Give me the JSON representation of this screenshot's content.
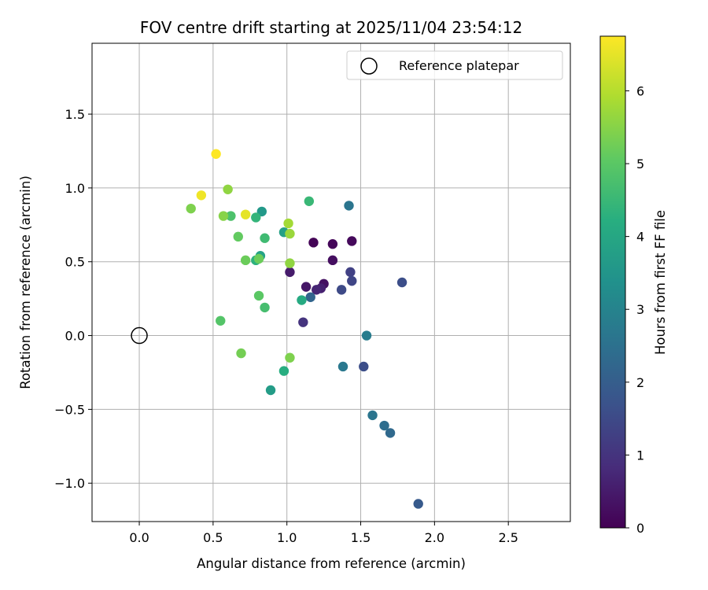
{
  "chart_data": {
    "type": "scatter",
    "title": "FOV centre drift starting at 2025/11/04 23:54:12",
    "xlabel": "Angular distance from reference (arcmin)",
    "ylabel": "Rotation from reference (arcmin)",
    "xlim": [
      -0.32,
      2.92
    ],
    "ylim": [
      -1.26,
      1.98
    ],
    "xticks": [
      0.0,
      0.5,
      1.0,
      1.5,
      2.0,
      2.5
    ],
    "xtick_labels": [
      "0.0",
      "0.5",
      "1.0",
      "1.5",
      "2.0",
      "2.5"
    ],
    "yticks": [
      -1.0,
      -0.5,
      0.0,
      0.5,
      1.0,
      1.5
    ],
    "ytick_labels": [
      "−1.0",
      "−0.5",
      "0.0",
      "0.5",
      "1.0",
      "1.5"
    ],
    "grid": true,
    "legend": {
      "position": "top-right",
      "entries": [
        "Reference platepar"
      ]
    },
    "reference_point": {
      "x": 0.0,
      "y": 0.0,
      "label": "Reference platepar"
    },
    "colorbar": {
      "label": "Hours from first FF file",
      "colormap": "viridis",
      "range": [
        0,
        6.75
      ],
      "ticks": [
        0,
        1,
        2,
        3,
        4,
        5,
        6
      ],
      "tick_labels": [
        "0",
        "1",
        "2",
        "3",
        "4",
        "5",
        "6"
      ]
    },
    "points": [
      {
        "x": 1.18,
        "y": 0.63,
        "h": 0.05
      },
      {
        "x": 1.31,
        "y": 0.62,
        "h": 0.1
      },
      {
        "x": 1.44,
        "y": 0.64,
        "h": 0.15
      },
      {
        "x": 1.31,
        "y": 0.51,
        "h": 0.25
      },
      {
        "x": 1.25,
        "y": 0.35,
        "h": 0.3
      },
      {
        "x": 1.13,
        "y": 0.33,
        "h": 0.4
      },
      {
        "x": 1.02,
        "y": 0.43,
        "h": 0.5
      },
      {
        "x": 1.23,
        "y": 0.32,
        "h": 0.6
      },
      {
        "x": 1.2,
        "y": 0.31,
        "h": 0.7
      },
      {
        "x": 1.11,
        "y": 0.09,
        "h": 1.0
      },
      {
        "x": 1.43,
        "y": 0.43,
        "h": 1.3
      },
      {
        "x": 1.44,
        "y": 0.37,
        "h": 1.4
      },
      {
        "x": 1.37,
        "y": 0.31,
        "h": 1.5
      },
      {
        "x": 1.78,
        "y": 0.36,
        "h": 1.6
      },
      {
        "x": 1.52,
        "y": -0.21,
        "h": 1.6
      },
      {
        "x": 1.89,
        "y": -1.14,
        "h": 1.9
      },
      {
        "x": 1.16,
        "y": 0.26,
        "h": 2.2
      },
      {
        "x": 1.7,
        "y": -0.66,
        "h": 2.3
      },
      {
        "x": 1.66,
        "y": -0.61,
        "h": 2.4
      },
      {
        "x": 1.58,
        "y": -0.54,
        "h": 2.6
      },
      {
        "x": 1.42,
        "y": 0.88,
        "h": 2.6
      },
      {
        "x": 1.38,
        "y": -0.21,
        "h": 2.7
      },
      {
        "x": 1.54,
        "y": 0.0,
        "h": 2.8
      },
      {
        "x": 0.83,
        "y": 0.84,
        "h": 3.6
      },
      {
        "x": 0.89,
        "y": -0.37,
        "h": 3.7
      },
      {
        "x": 0.98,
        "y": 0.7,
        "h": 3.8
      },
      {
        "x": 0.82,
        "y": 0.54,
        "h": 3.9
      },
      {
        "x": 1.1,
        "y": 0.24,
        "h": 4.1
      },
      {
        "x": 0.98,
        "y": -0.24,
        "h": 4.2
      },
      {
        "x": 0.79,
        "y": 0.51,
        "h": 4.3
      },
      {
        "x": 0.79,
        "y": 0.8,
        "h": 4.4
      },
      {
        "x": 1.15,
        "y": 0.91,
        "h": 4.5
      },
      {
        "x": 0.85,
        "y": 0.66,
        "h": 4.6
      },
      {
        "x": 0.85,
        "y": 0.19,
        "h": 4.7
      },
      {
        "x": 0.62,
        "y": 0.81,
        "h": 4.8
      },
      {
        "x": 0.55,
        "y": 0.1,
        "h": 4.9
      },
      {
        "x": 0.81,
        "y": 0.27,
        "h": 5.0
      },
      {
        "x": 0.67,
        "y": 0.67,
        "h": 5.1
      },
      {
        "x": 0.72,
        "y": 0.51,
        "h": 5.2
      },
      {
        "x": 0.81,
        "y": 0.52,
        "h": 5.2
      },
      {
        "x": 0.69,
        "y": -0.12,
        "h": 5.3
      },
      {
        "x": 1.02,
        "y": -0.15,
        "h": 5.4
      },
      {
        "x": 0.35,
        "y": 0.86,
        "h": 5.4
      },
      {
        "x": 0.57,
        "y": 0.81,
        "h": 5.5
      },
      {
        "x": 1.02,
        "y": 0.49,
        "h": 5.6
      },
      {
        "x": 0.6,
        "y": 0.99,
        "h": 5.6
      },
      {
        "x": 1.02,
        "y": 0.69,
        "h": 5.7
      },
      {
        "x": 1.01,
        "y": 0.76,
        "h": 5.8
      },
      {
        "x": 0.72,
        "y": 0.82,
        "h": 6.5
      },
      {
        "x": 0.42,
        "y": 0.95,
        "h": 6.6
      },
      {
        "x": 0.52,
        "y": 1.23,
        "h": 6.75
      }
    ]
  }
}
